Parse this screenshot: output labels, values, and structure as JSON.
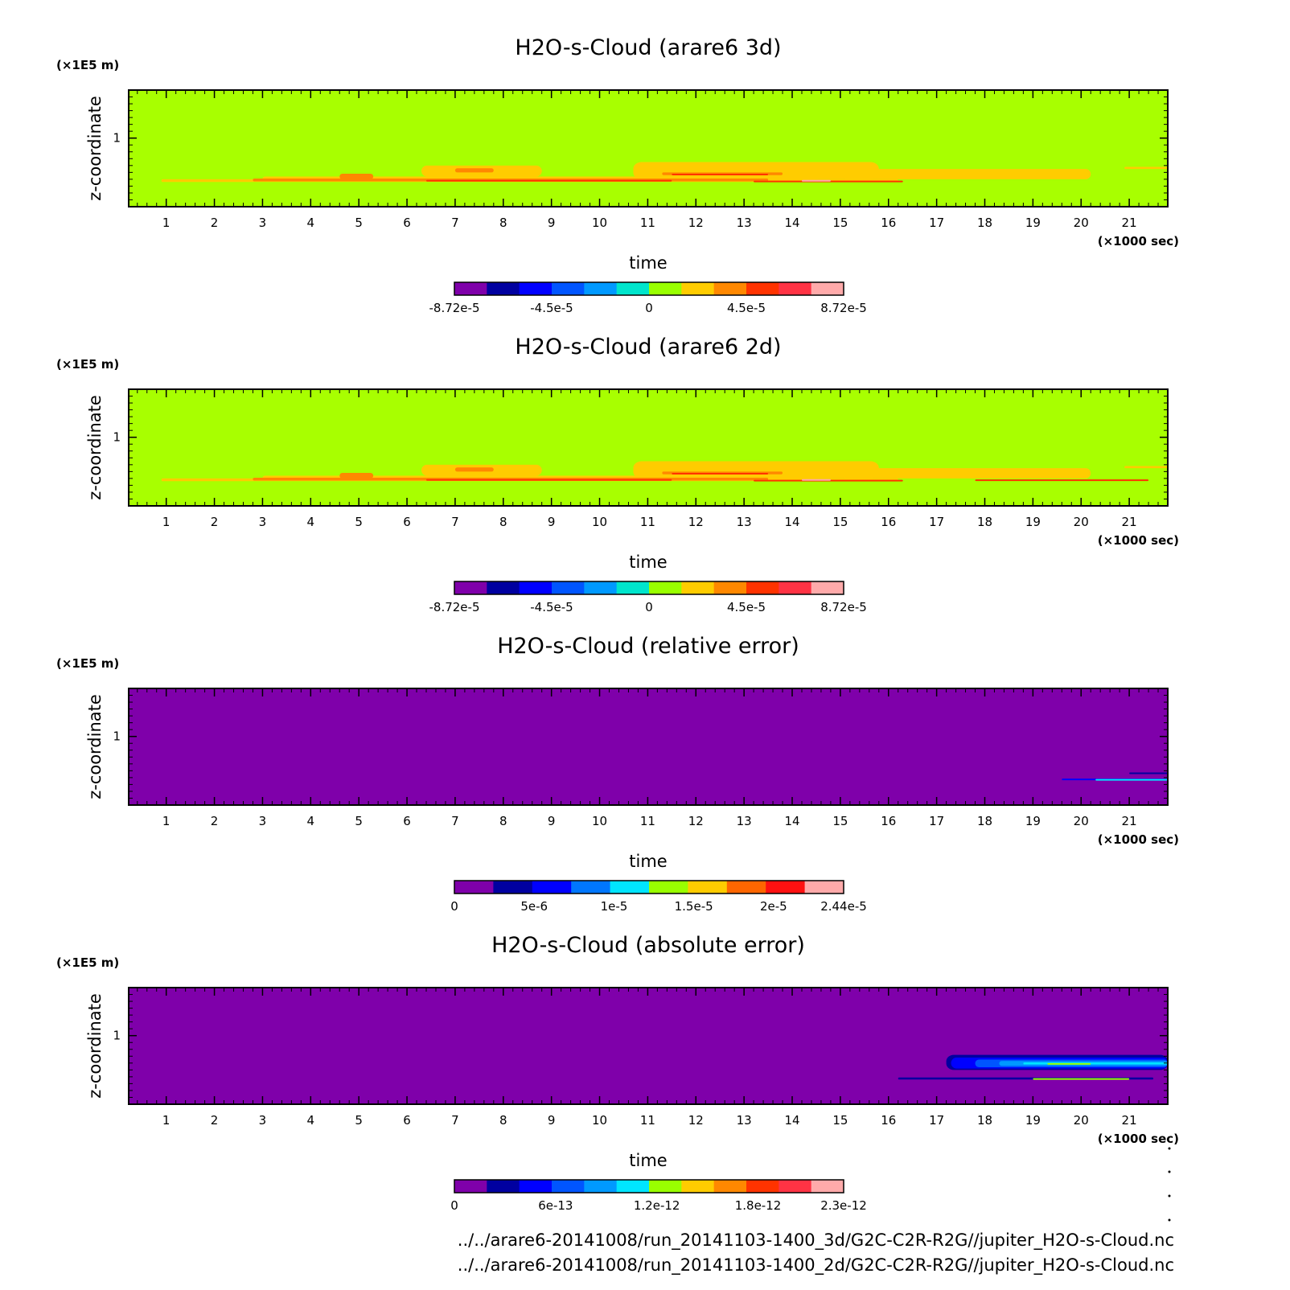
{
  "colors": {
    "background": "#ffffff",
    "frame": "#000000"
  },
  "footer": {
    "lines": [
      "../../arare6-20141008/run_20141103-1400_3d/G2C-C2R-R2G//jupiter_H2O-s-Cloud.nc",
      "../../arare6-20141008/run_20141103-1400_2d/G2C-C2R-R2G//jupiter_H2O-s-Cloud.nc"
    ]
  },
  "chart_data": [
    {
      "type": "heatmap",
      "title": "H2O-s-Cloud (arare6 3d)",
      "xlabel": "time",
      "ylabel": "z-coordinate",
      "x_unit": "(×1000 sec)",
      "y_unit": "(×1E5 m)",
      "xlim": [
        0.22,
        21.8
      ],
      "ylim": [
        0,
        1.7
      ],
      "xticks": [
        1,
        2,
        3,
        4,
        5,
        6,
        7,
        8,
        9,
        10,
        11,
        12,
        13,
        14,
        15,
        16,
        17,
        18,
        19,
        20,
        21
      ],
      "yticks": [
        1
      ],
      "background_level": "0",
      "colorbar": {
        "colors": [
          "#7f00aa",
          "#0000a0",
          "#0000ff",
          "#0055ff",
          "#0099ff",
          "#00e5cc",
          "#99ff00",
          "#ffcc00",
          "#ff8800",
          "#ff3300",
          "#ff3344",
          "#ffaaaa"
        ],
        "tick_labels": [
          "-8.72e-5",
          "-4.5e-5",
          "0",
          "4.5e-5",
          "8.72e-5"
        ],
        "tick_positions": [
          0,
          0.25,
          0.5,
          0.75,
          1
        ]
      },
      "features": [
        {
          "x": [
            0.9,
            16.2
          ],
          "y": [
            0.36,
            0.4
          ],
          "color": "#ffcc00"
        },
        {
          "x": [
            3.0,
            14.5
          ],
          "y": [
            0.37,
            0.44
          ],
          "color": "#ffcc00"
        },
        {
          "x": [
            6.3,
            8.8
          ],
          "y": [
            0.44,
            0.6
          ],
          "color": "#ffcc00"
        },
        {
          "x": [
            10.7,
            15.8
          ],
          "y": [
            0.4,
            0.65
          ],
          "color": "#ffcc00"
        },
        {
          "x": [
            15.0,
            20.2
          ],
          "y": [
            0.4,
            0.55
          ],
          "color": "#ffcc00"
        },
        {
          "x": [
            20.9,
            21.8
          ],
          "y": [
            0.55,
            0.58
          ],
          "color": "#ffcc00"
        },
        {
          "x": [
            2.8,
            13.5
          ],
          "y": [
            0.37,
            0.41
          ],
          "color": "#ff8800"
        },
        {
          "x": [
            4.6,
            5.3
          ],
          "y": [
            0.4,
            0.48
          ],
          "color": "#ff8800"
        },
        {
          "x": [
            7.0,
            7.8
          ],
          "y": [
            0.5,
            0.56
          ],
          "color": "#ff8800"
        },
        {
          "x": [
            11.3,
            13.8
          ],
          "y": [
            0.46,
            0.5
          ],
          "color": "#ff8800"
        },
        {
          "x": [
            6.4,
            11.5
          ],
          "y": [
            0.37,
            0.39
          ],
          "color": "#ff3300"
        },
        {
          "x": [
            11.5,
            13.5
          ],
          "y": [
            0.46,
            0.48
          ],
          "color": "#ff3300"
        },
        {
          "x": [
            13.2,
            16.3
          ],
          "y": [
            0.36,
            0.38
          ],
          "color": "#ff3300"
        },
        {
          "x": [
            14.2,
            14.8
          ],
          "y": [
            0.37,
            0.39
          ],
          "color": "#ffaaaa"
        }
      ]
    },
    {
      "type": "heatmap",
      "title": "H2O-s-Cloud (arare6 2d)",
      "xlabel": "time",
      "ylabel": "z-coordinate",
      "x_unit": "(×1000 sec)",
      "y_unit": "(×1E5 m)",
      "xlim": [
        0.22,
        21.8
      ],
      "ylim": [
        0,
        1.7
      ],
      "xticks": [
        1,
        2,
        3,
        4,
        5,
        6,
        7,
        8,
        9,
        10,
        11,
        12,
        13,
        14,
        15,
        16,
        17,
        18,
        19,
        20,
        21
      ],
      "yticks": [
        1
      ],
      "background_level": "0",
      "colorbar": {
        "colors": [
          "#7f00aa",
          "#0000a0",
          "#0000ff",
          "#0055ff",
          "#0099ff",
          "#00e5cc",
          "#99ff00",
          "#ffcc00",
          "#ff8800",
          "#ff3300",
          "#ff3344",
          "#ffaaaa"
        ],
        "tick_labels": [
          "-8.72e-5",
          "-4.5e-5",
          "0",
          "4.5e-5",
          "8.72e-5"
        ],
        "tick_positions": [
          0,
          0.25,
          0.5,
          0.75,
          1
        ]
      },
      "features": [
        {
          "x": [
            0.9,
            16.2
          ],
          "y": [
            0.36,
            0.4
          ],
          "color": "#ffcc00"
        },
        {
          "x": [
            3.0,
            14.5
          ],
          "y": [
            0.37,
            0.44
          ],
          "color": "#ffcc00"
        },
        {
          "x": [
            6.3,
            8.8
          ],
          "y": [
            0.44,
            0.6
          ],
          "color": "#ffcc00"
        },
        {
          "x": [
            10.7,
            15.8
          ],
          "y": [
            0.4,
            0.65
          ],
          "color": "#ffcc00"
        },
        {
          "x": [
            15.0,
            20.2
          ],
          "y": [
            0.4,
            0.55
          ],
          "color": "#ffcc00"
        },
        {
          "x": [
            20.9,
            21.8
          ],
          "y": [
            0.55,
            0.58
          ],
          "color": "#ffcc00"
        },
        {
          "x": [
            2.8,
            13.5
          ],
          "y": [
            0.37,
            0.41
          ],
          "color": "#ff8800"
        },
        {
          "x": [
            4.6,
            5.3
          ],
          "y": [
            0.4,
            0.48
          ],
          "color": "#ff8800"
        },
        {
          "x": [
            7.0,
            7.8
          ],
          "y": [
            0.5,
            0.56
          ],
          "color": "#ff8800"
        },
        {
          "x": [
            11.3,
            13.8
          ],
          "y": [
            0.46,
            0.5
          ],
          "color": "#ff8800"
        },
        {
          "x": [
            6.4,
            11.5
          ],
          "y": [
            0.37,
            0.39
          ],
          "color": "#ff3300"
        },
        {
          "x": [
            11.5,
            13.5
          ],
          "y": [
            0.46,
            0.48
          ],
          "color": "#ff3300"
        },
        {
          "x": [
            13.2,
            16.3
          ],
          "y": [
            0.36,
            0.38
          ],
          "color": "#ff3300"
        },
        {
          "x": [
            17.8,
            21.4
          ],
          "y": [
            0.37,
            0.385
          ],
          "color": "#ff3300"
        },
        {
          "x": [
            14.2,
            14.8
          ],
          "y": [
            0.37,
            0.39
          ],
          "color": "#ffaaaa"
        }
      ]
    },
    {
      "type": "heatmap",
      "title": "H2O-s-Cloud (relative error)",
      "xlabel": "time",
      "ylabel": "z-coordinate",
      "x_unit": "(×1000 sec)",
      "y_unit": "(×1E5 m)",
      "xlim": [
        0.22,
        21.8
      ],
      "ylim": [
        0,
        1.7
      ],
      "xticks": [
        1,
        2,
        3,
        4,
        5,
        6,
        7,
        8,
        9,
        10,
        11,
        12,
        13,
        14,
        15,
        16,
        17,
        18,
        19,
        20,
        21
      ],
      "yticks": [
        1
      ],
      "background_level": "0",
      "colorbar": {
        "colors": [
          "#7f00aa",
          "#0000a0",
          "#0000ff",
          "#0077ff",
          "#00e5ff",
          "#99ff00",
          "#ffcc00",
          "#ff6600",
          "#ff1111",
          "#ffaaaa"
        ],
        "tick_labels": [
          "0",
          "5e-6",
          "1e-5",
          "1.5e-5",
          "2e-5",
          "2.44e-5"
        ],
        "tick_positions": [
          0,
          0.205,
          0.41,
          0.615,
          0.82,
          1
        ]
      },
      "features": [
        {
          "x": [
            19.6,
            21.8
          ],
          "y": [
            0.365,
            0.385
          ],
          "color": "#0000ff"
        },
        {
          "x": [
            20.3,
            21.8
          ],
          "y": [
            0.37,
            0.38
          ],
          "color": "#00e5ff"
        },
        {
          "x": [
            21.0,
            21.8
          ],
          "y": [
            0.46,
            0.475
          ],
          "color": "#0000a0"
        }
      ]
    },
    {
      "type": "heatmap",
      "title": "H2O-s-Cloud (absolute error)",
      "xlabel": "time",
      "ylabel": "z-coordinate",
      "x_unit": "(×1000 sec)",
      "y_unit": "(×1E5 m)",
      "xlim": [
        0.22,
        21.8
      ],
      "ylim": [
        0,
        1.7
      ],
      "xticks": [
        1,
        2,
        3,
        4,
        5,
        6,
        7,
        8,
        9,
        10,
        11,
        12,
        13,
        14,
        15,
        16,
        17,
        18,
        19,
        20,
        21
      ],
      "yticks": [
        1
      ],
      "background_level": "0",
      "colorbar": {
        "colors": [
          "#7f00aa",
          "#0000a0",
          "#0000ff",
          "#0055ff",
          "#0099ff",
          "#00e5ff",
          "#99ff00",
          "#ffcc00",
          "#ff8800",
          "#ff3300",
          "#ff3344",
          "#ffaaaa"
        ],
        "tick_labels": [
          "0",
          "6e-13",
          "1.2e-12",
          "1.8e-12",
          "2.3e-12"
        ],
        "tick_positions": [
          0,
          0.26,
          0.52,
          0.78,
          1
        ]
      },
      "features": [
        {
          "x": [
            16.2,
            21.5
          ],
          "y": [
            0.36,
            0.39
          ],
          "color": "#0000a0"
        },
        {
          "x": [
            17.2,
            21.8
          ],
          "y": [
            0.5,
            0.72
          ],
          "color": "#0000a0"
        },
        {
          "x": [
            17.3,
            21.8
          ],
          "y": [
            0.52,
            0.68
          ],
          "color": "#0000ff"
        },
        {
          "x": [
            17.8,
            21.8
          ],
          "y": [
            0.54,
            0.65
          ],
          "color": "#0055ff"
        },
        {
          "x": [
            18.3,
            21.8
          ],
          "y": [
            0.56,
            0.63
          ],
          "color": "#0099ff"
        },
        {
          "x": [
            18.8,
            21.8
          ],
          "y": [
            0.58,
            0.61
          ],
          "color": "#00e5ff"
        },
        {
          "x": [
            19.3,
            20.2
          ],
          "y": [
            0.585,
            0.6
          ],
          "color": "#99ff00"
        },
        {
          "x": [
            19.0,
            21.0
          ],
          "y": [
            0.37,
            0.38
          ],
          "color": "#99ff00"
        }
      ]
    }
  ]
}
